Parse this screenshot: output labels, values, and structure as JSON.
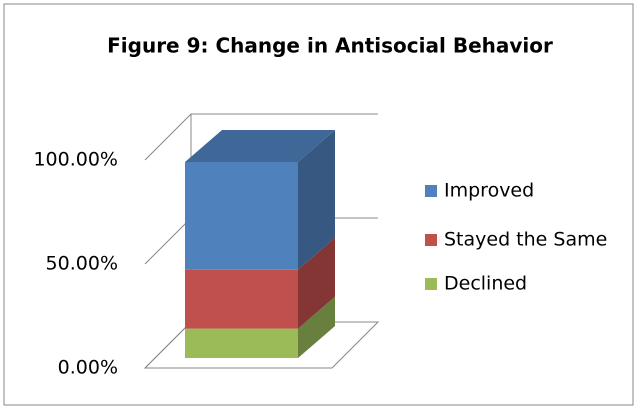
{
  "chart_data": {
    "type": "bar3d_stacked",
    "title": "Figure 9: Change in Antisocial Behavior",
    "series": [
      {
        "name": "Declined",
        "color": "#9bbb59",
        "values": [
          15
        ]
      },
      {
        "name": "Stayed the Same",
        "color": "#c0504d",
        "values": [
          30
        ]
      },
      {
        "name": "Improved",
        "color": "#4f81bd",
        "values": [
          55
        ]
      }
    ],
    "ylim": [
      0,
      100
    ],
    "yticks": [
      {
        "value": 0,
        "label": "0.00%"
      },
      {
        "value": 50,
        "label": "50.00%"
      },
      {
        "value": 100,
        "label": "100.00%"
      }
    ],
    "grid": true,
    "legend": "right"
  }
}
